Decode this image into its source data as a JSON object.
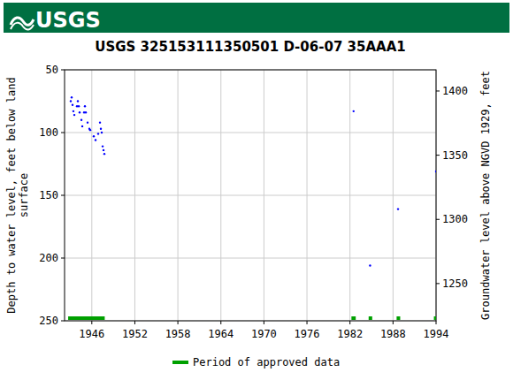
{
  "header": {
    "logo": "USGS"
  },
  "chart_data": {
    "type": "scatter",
    "title": "USGS 325153111350501 D-06-07 35AAA1",
    "y_label": [
      "Depth to water level, feet below land",
      "surface"
    ],
    "y2_label": "Groundwater level above NGVD 1929, feet",
    "x": [
      1943.06,
      1943.19,
      1943.31,
      1943.43,
      1943.56,
      1943.93,
      1944.05,
      1944.18,
      1944.3,
      1944.55,
      1944.67,
      1944.92,
      1945.04,
      1945.16,
      1945.41,
      1945.66,
      1945.78,
      1946.27,
      1946.52,
      1946.89,
      1947.14,
      1947.26,
      1947.38,
      1947.51,
      1947.63,
      1947.75,
      1982.5,
      1984.8,
      1988.7,
      1994.0
    ],
    "values": [
      75,
      72,
      78,
      83,
      86,
      79,
      75,
      79,
      84,
      90,
      95,
      84,
      79,
      84,
      92,
      97,
      98,
      103,
      106,
      101,
      92,
      97,
      100,
      111,
      114,
      117,
      83,
      206,
      161,
      131
    ],
    "color": "#0000ff",
    "marker": "dot",
    "xlim": [
      1942.2,
      1994.0
    ],
    "xticks": [
      1946,
      1952,
      1958,
      1964,
      1970,
      1976,
      1982,
      1988,
      1994
    ],
    "ylim": [
      250,
      50
    ],
    "yticks": [
      50,
      100,
      150,
      200,
      250
    ],
    "y2lim": [
      1221,
      1416.5
    ],
    "y2ticks": [
      1250,
      1300,
      1350,
      1400
    ],
    "grid": true,
    "legend": "bottom",
    "approved": {
      "name": "Period of approved data",
      "color": "#00a000",
      "periods": [
        [
          1942.7,
          1947.8
        ],
        [
          1982.2,
          1982.8
        ],
        [
          1984.6,
          1985.1
        ],
        [
          1988.5,
          1989.0
        ],
        [
          1993.7,
          1994.3
        ]
      ]
    }
  }
}
